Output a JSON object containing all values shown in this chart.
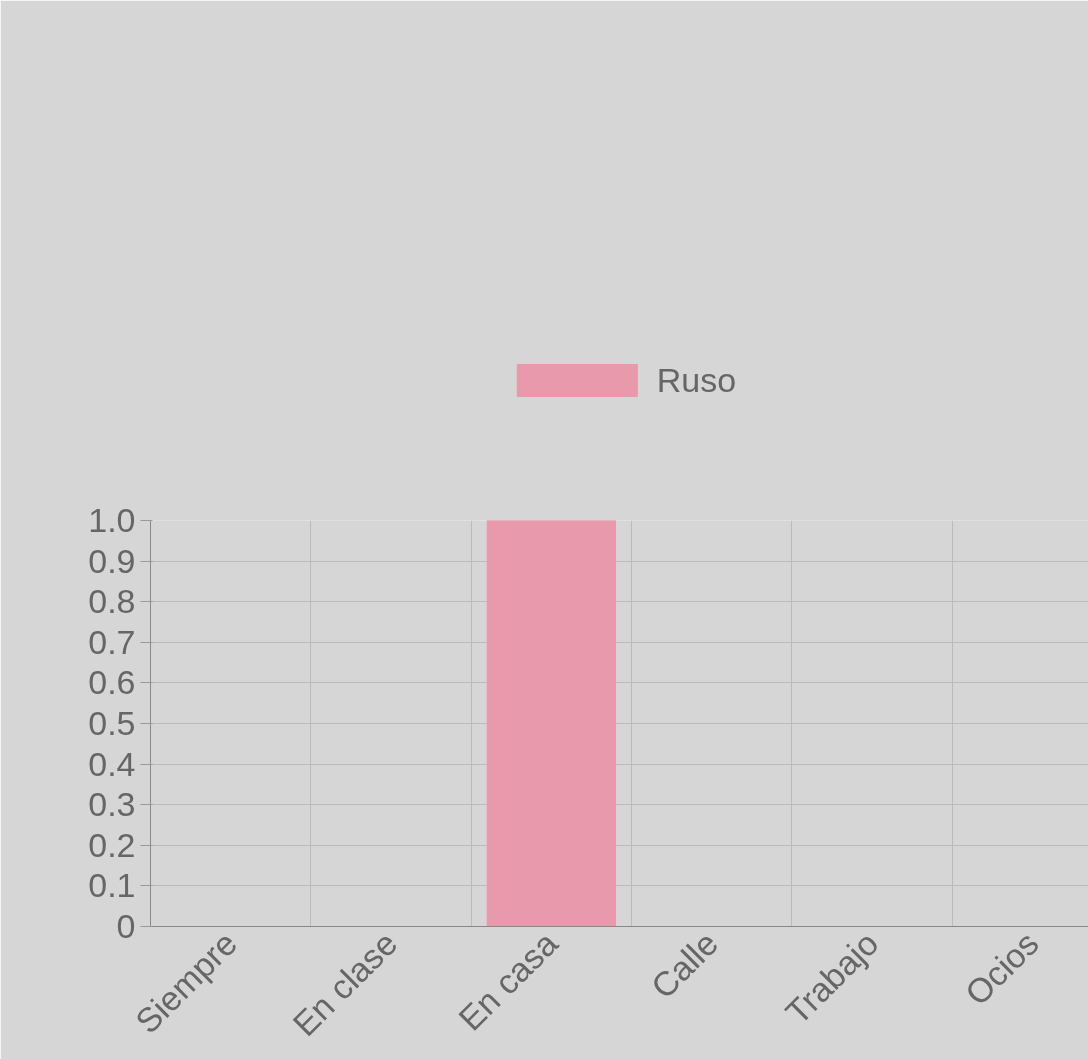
{
  "chart_data": {
    "type": "bar",
    "categories": [
      "Siempre",
      "En clase",
      "En casa",
      "Calle",
      "Trabajo",
      "Ocios"
    ],
    "series": [
      {
        "name": "Ruso",
        "color": "#e899ab",
        "values": [
          0,
          0,
          1,
          0,
          0,
          0
        ]
      }
    ],
    "ylim": [
      0,
      1.0
    ],
    "yticks": [
      0,
      0.1,
      0.2,
      0.3,
      0.4,
      0.5,
      0.6,
      0.7,
      0.8,
      0.9,
      {
        "value": 1.0,
        "label": "1.0"
      }
    ],
    "grid": true,
    "legend": "top"
  }
}
